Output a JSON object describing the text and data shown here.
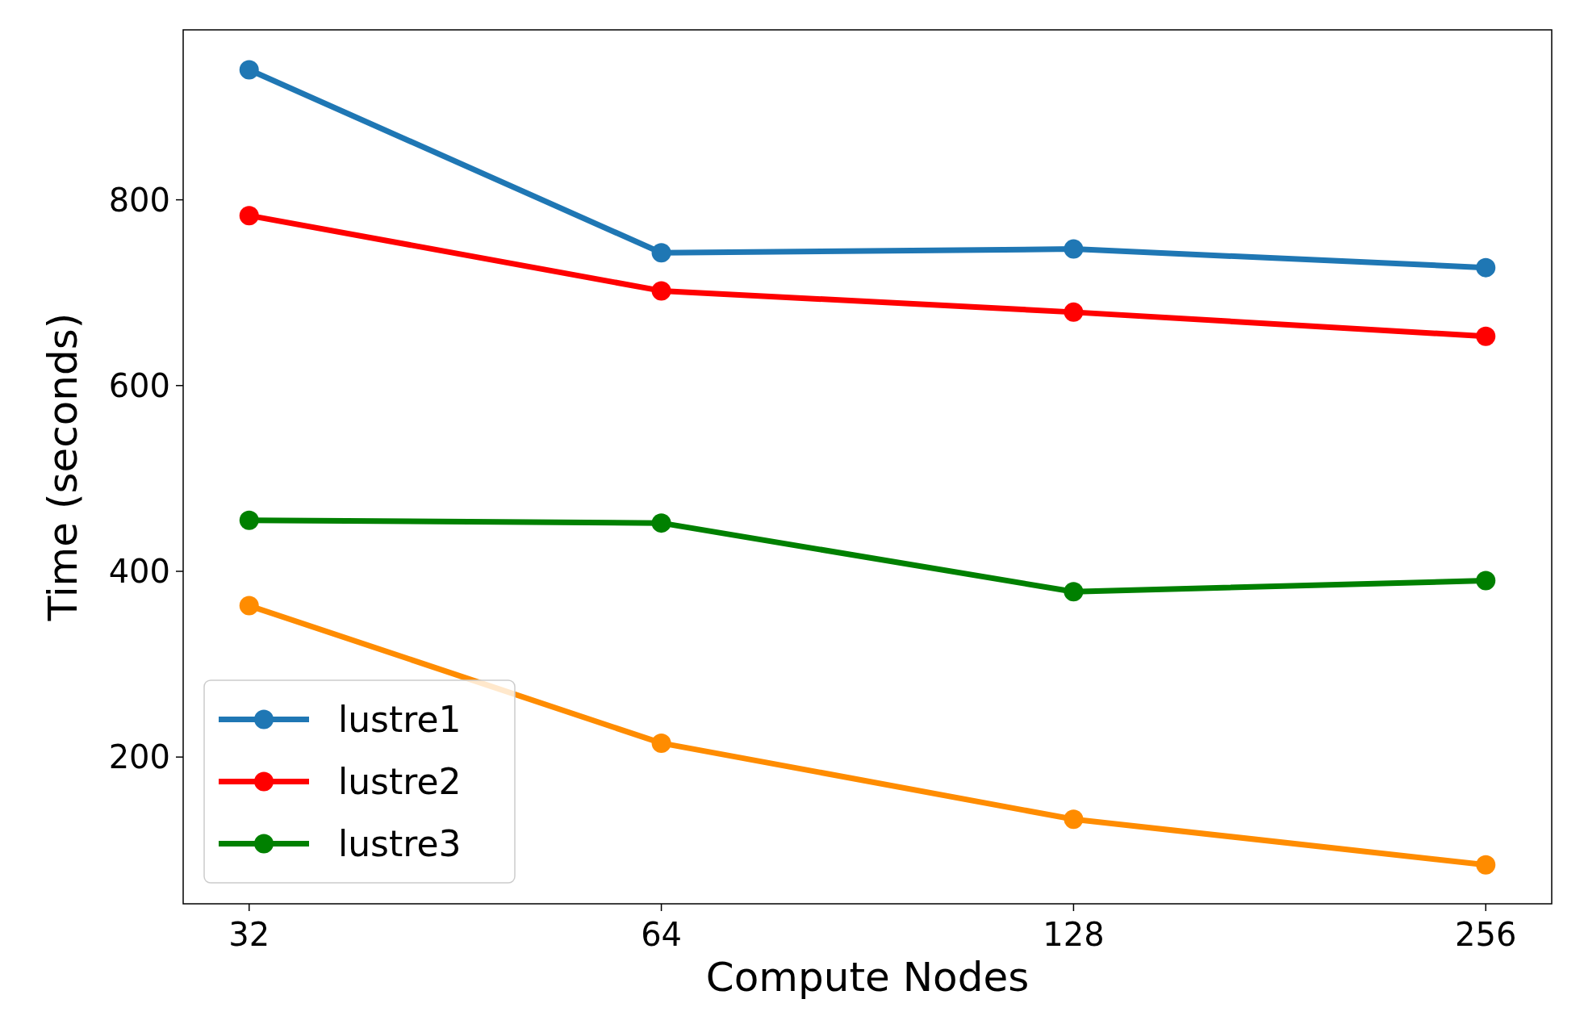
{
  "chart_data": {
    "type": "line",
    "xlabel": "Compute Nodes",
    "ylabel": "Time (seconds)",
    "categories": [
      "32",
      "64",
      "128",
      "256"
    ],
    "ylim": [
      42,
      983
    ],
    "yticks": [
      200,
      400,
      600,
      800
    ],
    "series": [
      {
        "color": "#ff8c00",
        "values": [
          363,
          215,
          133,
          84
        ]
      },
      {
        "name": "lustre1",
        "color": "#1f77b4",
        "values": [
          940,
          743,
          747,
          727
        ]
      },
      {
        "name": "lustre2",
        "color": "#ff0000",
        "values": [
          783,
          702,
          679,
          653
        ]
      },
      {
        "name": "lustre3",
        "color": "#008000",
        "values": [
          455,
          452,
          378,
          390
        ]
      }
    ],
    "marker": "circle",
    "line_style": "solid",
    "legend": "bottom left",
    "grid": false
  }
}
